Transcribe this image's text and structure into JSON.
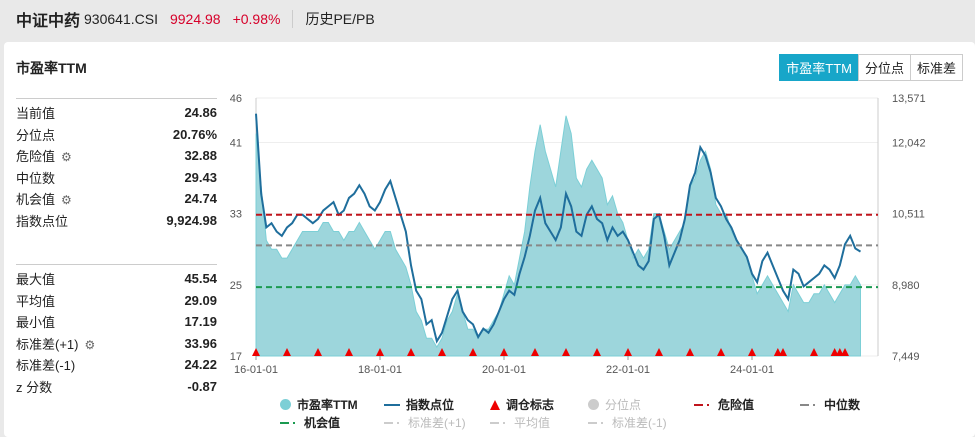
{
  "header": {
    "name": "中证中药",
    "code": "930641.CSI",
    "price": "9924.98",
    "change": "+0.98%",
    "link": "历史PE/PB"
  },
  "card": {
    "title": "市盈率TTM",
    "tabs": [
      "市盈率TTM",
      "分位点",
      "标准差"
    ],
    "active_tab": 0
  },
  "stats1": [
    {
      "label": "当前值",
      "value": "24.86"
    },
    {
      "label": "分位点",
      "value": "20.76%"
    },
    {
      "label": "危险值",
      "value": "32.88",
      "gear": true
    },
    {
      "label": "中位数",
      "value": "29.43"
    },
    {
      "label": "机会值",
      "value": "24.74",
      "gear": true
    },
    {
      "label": "指数点位",
      "value": "9,924.98"
    }
  ],
  "stats2": [
    {
      "label": "最大值",
      "value": "45.54"
    },
    {
      "label": "平均值",
      "value": "29.09"
    },
    {
      "label": "最小值",
      "value": "17.19"
    },
    {
      "label": "标准差(+1)",
      "value": "33.96",
      "gear": true
    },
    {
      "label": "标准差(-1)",
      "value": "24.22"
    },
    {
      "label": "z 分数",
      "value": "-0.87"
    }
  ],
  "legend": [
    {
      "label": "市盈率TTM",
      "color": "#7ccfd6",
      "shape": "circle",
      "on": true
    },
    {
      "label": "指数点位",
      "color": "#1f6e9c",
      "shape": "line",
      "on": true
    },
    {
      "label": "调仓标志",
      "color": "#ee0000",
      "shape": "triangle",
      "on": true
    },
    {
      "label": "分位点",
      "color": "#cccccc",
      "shape": "circle",
      "on": false
    },
    {
      "label": "危险值",
      "color": "#c0141c",
      "shape": "dash",
      "on": true
    },
    {
      "label": "中位数",
      "color": "#888888",
      "shape": "dash",
      "on": true
    },
    {
      "label": "机会值",
      "color": "#1a9a50",
      "shape": "dash",
      "on": true
    },
    {
      "label": "标准差(+1)",
      "color": "#cccccc",
      "shape": "dash",
      "on": false
    },
    {
      "label": "平均值",
      "color": "#cccccc",
      "shape": "dash",
      "on": false
    },
    {
      "label": "标准差(-1)",
      "color": "#cccccc",
      "shape": "dash",
      "on": false
    }
  ],
  "chart_data": {
    "type": "area+line",
    "x_start": "2016-01",
    "x_end": "2025-10",
    "x_ticks": [
      "16-01-01",
      "18-01-01",
      "20-01-01",
      "22-01-01",
      "24-01-01"
    ],
    "left_axis": {
      "ticks": [
        "17",
        "25",
        "33",
        "41",
        "46"
      ],
      "range": [
        17,
        46
      ]
    },
    "right_axis": {
      "ticks": [
        "7,449",
        "8,980",
        "10,511",
        "12,042",
        "13,571"
      ],
      "range": [
        7449,
        13571
      ]
    },
    "pe": [
      42,
      36,
      30,
      29,
      29,
      28,
      28,
      29,
      30,
      31,
      31,
      31,
      31,
      32,
      32,
      31,
      31,
      30,
      31,
      31,
      32,
      31,
      30,
      29,
      30,
      31,
      31,
      29,
      28,
      27,
      25,
      22,
      21,
      19,
      19,
      18,
      19,
      21,
      22,
      24,
      22,
      20,
      20,
      19,
      20,
      20,
      21,
      22,
      24,
      26,
      25,
      28,
      31,
      36,
      40,
      43,
      40,
      38,
      36,
      40,
      44,
      42,
      37,
      36,
      38,
      39,
      38,
      37,
      34,
      35,
      33,
      32,
      30,
      28,
      29,
      28,
      29,
      33,
      33,
      31,
      29,
      30,
      31,
      32,
      36,
      37,
      39,
      40,
      38,
      34,
      33,
      33,
      31,
      30,
      29,
      28,
      26,
      24,
      25,
      26,
      25,
      24,
      23,
      22,
      25,
      24,
      23,
      23,
      24,
      24,
      25,
      24,
      23,
      24,
      25,
      25,
      26,
      25
    ],
    "index": [
      13200,
      11300,
      10500,
      10600,
      10400,
      10300,
      10500,
      10600,
      10800,
      10800,
      10700,
      10600,
      10700,
      10900,
      11000,
      11100,
      10800,
      10900,
      11200,
      11300,
      11500,
      11300,
      11000,
      10900,
      11100,
      11400,
      11600,
      11200,
      10800,
      10400,
      9600,
      9000,
      8800,
      8200,
      8300,
      7800,
      8000,
      8400,
      8800,
      9000,
      8500,
      8300,
      8200,
      7900,
      8100,
      8000,
      8200,
      8500,
      8800,
      9000,
      8900,
      9400,
      9800,
      10300,
      10900,
      11200,
      10600,
      10400,
      10200,
      10500,
      11300,
      11000,
      10400,
      10300,
      10800,
      11000,
      10700,
      10600,
      10200,
      10500,
      10300,
      10400,
      10200,
      9900,
      9600,
      9500,
      9700,
      10700,
      10800,
      10300,
      9600,
      9900,
      10200,
      10700,
      11500,
      11800,
      12400,
      12200,
      11800,
      11200,
      11000,
      10700,
      10500,
      10200,
      10000,
      9800,
      9400,
      9200,
      9700,
      9900,
      9600,
      9300,
      9000,
      8800,
      9500,
      9400,
      9100,
      9200,
      9300,
      9400,
      9600,
      9500,
      9300,
      9600,
      10100,
      10300,
      10000,
      9925
    ],
    "danger": 32.88,
    "median": 29.43,
    "opportunity": 24.74,
    "rebalance_dates": [
      "2016-01",
      "2016-07",
      "2017-01",
      "2017-07",
      "2018-01",
      "2018-07",
      "2019-01",
      "2019-07",
      "2020-01",
      "2020-07",
      "2021-01",
      "2021-07",
      "2022-01",
      "2022-07",
      "2023-01",
      "2023-07",
      "2024-01",
      "2024-06",
      "2024-07",
      "2025-01",
      "2025-05",
      "2025-06",
      "2025-07"
    ],
    "grid": true
  }
}
